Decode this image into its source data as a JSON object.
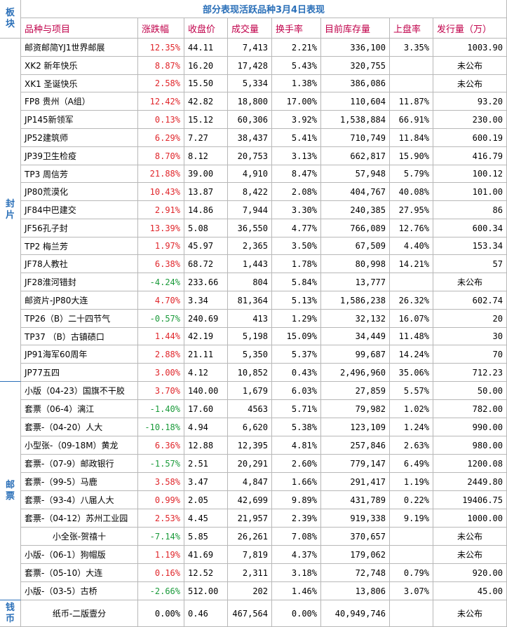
{
  "header_label": "板块",
  "title": "部分表现活跃品种3月4日表现",
  "columns": [
    "品种与项目",
    "涨跌幅",
    "收盘价",
    "成交量",
    "换手率",
    "目前库存量",
    "上盘率",
    "发行量（万）"
  ],
  "groups": [
    {
      "label": "封片",
      "rows": [
        [
          "邮资邮简YJ1世界邮展",
          "12.35%",
          "44.11",
          "7,413",
          "2.21%",
          "336,100",
          "3.35%",
          "1003.90"
        ],
        [
          "XK2 新年快乐",
          "8.87%",
          "16.20",
          "17,428",
          "5.43%",
          "320,755",
          "",
          "未公布"
        ],
        [
          "XK1 圣诞快乐",
          "2.58%",
          "15.50",
          "5,334",
          "1.38%",
          "386,086",
          "",
          "未公布"
        ],
        [
          "FP8 贵州（A组）",
          "12.42%",
          "42.82",
          "18,800",
          "17.00%",
          "110,604",
          "11.87%",
          "93.20"
        ],
        [
          "JP145新领军",
          "0.13%",
          "15.12",
          "60,306",
          "3.92%",
          "1,538,884",
          "66.91%",
          "230.00"
        ],
        [
          "JP52建筑师",
          "6.29%",
          "7.27",
          "38,437",
          "5.41%",
          "710,749",
          "11.84%",
          "600.19"
        ],
        [
          "JP39卫生检疫",
          "8.70%",
          "8.12",
          "20,753",
          "3.13%",
          "662,817",
          "15.90%",
          "416.79"
        ],
        [
          "TP3 周信芳",
          "21.88%",
          "39.00",
          "4,910",
          "8.47%",
          "57,948",
          "5.79%",
          "100.12"
        ],
        [
          "JP80荒漠化",
          "10.43%",
          "13.87",
          "8,422",
          "2.08%",
          "404,767",
          "40.08%",
          "101.00"
        ],
        [
          "JF84中巴建交",
          "2.91%",
          "14.86",
          "7,944",
          "3.30%",
          "240,385",
          "27.95%",
          "86"
        ],
        [
          "JF56孔子封",
          "13.39%",
          "5.08",
          "36,550",
          "4.77%",
          "766,089",
          "12.76%",
          "600.34"
        ],
        [
          "TP2 梅兰芳",
          "1.97%",
          "45.97",
          "2,365",
          "3.50%",
          "67,509",
          "4.40%",
          "153.34"
        ],
        [
          "JF78人教社",
          "6.38%",
          "68.72",
          "1,443",
          "1.78%",
          "80,998",
          "14.21%",
          "57"
        ],
        [
          "JF28淮河错封",
          "-4.24%",
          "233.66",
          "804",
          "5.84%",
          "13,777",
          "",
          "未公布"
        ],
        [
          "邮资片-JP80大连",
          "4.70%",
          "3.34",
          "81,364",
          "5.13%",
          "1,586,238",
          "26.32%",
          "602.74"
        ],
        [
          "TP26（B）二十四节气",
          "-0.57%",
          "240.69",
          "413",
          "1.29%",
          "32,132",
          "16.07%",
          "20"
        ],
        [
          "TP37 （B）古镇碛口",
          "1.44%",
          "42.19",
          "5,198",
          "15.09%",
          "34,449",
          "11.48%",
          "30"
        ],
        [
          "JP91海军60周年",
          "2.88%",
          "21.11",
          "5,350",
          "5.37%",
          "99,687",
          "14.24%",
          "70"
        ],
        [
          "JP77五四",
          "3.00%",
          "4.12",
          "10,852",
          "0.43%",
          "2,496,960",
          "35.06%",
          "712.23"
        ]
      ]
    },
    {
      "label": "邮票",
      "rows": [
        [
          "小版（04-23）国旗不干胶",
          "3.70%",
          "140.00",
          "1,679",
          "6.03%",
          "27,859",
          "5.57%",
          "50.00"
        ],
        [
          "套票（06-4）漓江",
          "-1.40%",
          "17.60",
          "4563",
          "5.71%",
          "79,982",
          "1.02%",
          "782.00"
        ],
        [
          "套票-（04-20）人大",
          "-10.18%",
          "4.94",
          "6,620",
          "5.38%",
          "123,109",
          "1.24%",
          "990.00"
        ],
        [
          "小型张-（09-18M）黄龙",
          "6.36%",
          "12.88",
          "12,395",
          "4.81%",
          "257,846",
          "2.63%",
          "980.00"
        ],
        [
          "套票-（07-9）邮政银行",
          "-1.57%",
          "2.51",
          "20,291",
          "2.60%",
          "779,147",
          "6.49%",
          "1200.08"
        ],
        [
          "套票-（99-5）马鹿",
          "3.58%",
          "3.47",
          "4,847",
          "1.66%",
          "291,417",
          "1.19%",
          "2449.80"
        ],
        [
          "套票-（93-4）八届人大",
          "0.99%",
          "2.05",
          "42,699",
          "9.89%",
          "431,789",
          "0.22%",
          "19406.75"
        ],
        [
          "套票-（04-12）苏州工业园",
          "2.53%",
          "4.45",
          "21,957",
          "2.39%",
          "919,338",
          "9.19%",
          "1000.00"
        ],
        [
          "小全张-贺禧十",
          "-7.14%",
          "5.85",
          "26,261",
          "7.08%",
          "370,657",
          "",
          "未公布"
        ],
        [
          "小版-（06-1）狗帽版",
          "1.19%",
          "41.69",
          "7,819",
          "4.37%",
          "179,062",
          "",
          "未公布"
        ],
        [
          "套票-（05-10）大连",
          "0.16%",
          "12.52",
          "2,311",
          "3.18%",
          "72,748",
          "0.79%",
          "920.00"
        ],
        [
          "小版-（03-5）古桥",
          "-2.66%",
          "512.00",
          "202",
          "1.46%",
          "13,806",
          "3.07%",
          "45.00"
        ]
      ]
    },
    {
      "label": "钱币",
      "rows": [
        [
          "纸币-二版壹分",
          "0.00%",
          "0.46",
          "467,564",
          "0.00%",
          "40,949,746",
          "",
          "未公布"
        ]
      ]
    }
  ]
}
